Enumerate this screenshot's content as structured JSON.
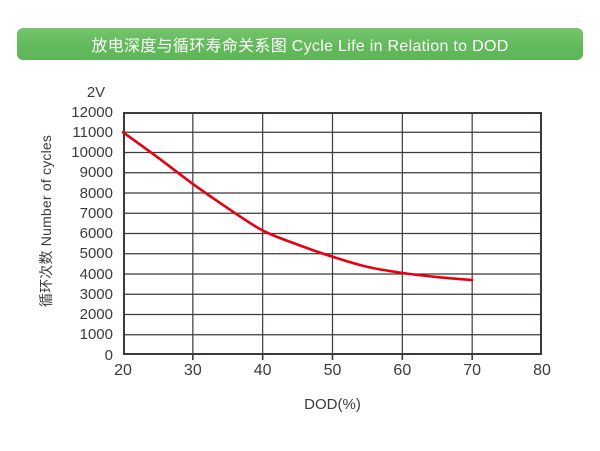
{
  "banner": {
    "title": "放电深度与循环寿命关系图 Cycle Life in Relation to DOD",
    "bg_color": "#66bb5e",
    "text_color": "#ffffff"
  },
  "chart": {
    "series_label": "2V",
    "xlabel": "DOD(%)",
    "ylabel": "循环次数 Number of cycles"
  },
  "chart_data": {
    "type": "line",
    "title": "放电深度与循环寿命关系图 Cycle Life in Relation to DOD",
    "xlabel": "DOD(%)",
    "ylabel": "循环次数 Number of cycles",
    "annotation": "2V",
    "legend_position": "none",
    "grid": true,
    "xlim": [
      20,
      80
    ],
    "ylim": [
      0,
      12000
    ],
    "x_ticks": [
      20,
      30,
      40,
      50,
      60,
      70,
      80
    ],
    "y_tick_step": 1000,
    "line_color": "#e60012",
    "grid_color": "#3e3a39",
    "series": [
      {
        "name": "2V",
        "x": [
          20,
          25,
          30,
          35,
          40,
          45,
          50,
          55,
          60,
          65,
          70
        ],
        "y": [
          11000,
          9750,
          8450,
          7250,
          6150,
          5450,
          4850,
          4350,
          4050,
          3850,
          3700
        ]
      }
    ]
  }
}
